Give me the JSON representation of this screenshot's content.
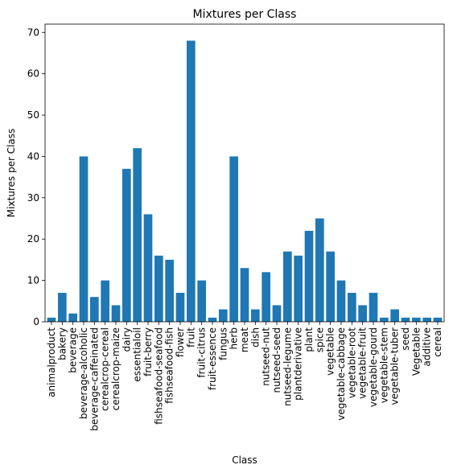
{
  "chart_data": {
    "type": "bar",
    "title": "Mixtures per Class",
    "xlabel": "Class",
    "ylabel": "Mixtures per Class",
    "ylim": [
      0,
      72
    ],
    "yticks": [
      0,
      10,
      20,
      30,
      40,
      50,
      60,
      70
    ],
    "grid": false,
    "legend": "none",
    "bar_color": "#1f77b4",
    "categories": [
      "animalproduct",
      "bakery",
      "beverage",
      "beverage-alcoholic",
      "beverage-caffeinated",
      "cerealcrop-cereal",
      "cerealcrop-maize",
      "dairy",
      "essentialoil",
      "fruit-berry",
      "fishseafood-seafood",
      "fishseafood-fish",
      "flower",
      "fruit",
      "fruit-citrus",
      "fruit-essence",
      "fungus",
      "herb",
      "meat",
      "dish",
      "nutseed-nut",
      "nutseed-seed",
      "nutseed-legume",
      "plantderivative",
      "plant",
      "spice",
      "vegetable",
      "vegetable-cabbage",
      "vegetable-root",
      "vegetable-fruit",
      "vegetable-gourd",
      "vegetable-stem",
      "vegetable-tuber",
      "seed",
      "Vegetable",
      "additive",
      "cereal"
    ],
    "values": [
      1,
      7,
      2,
      40,
      6,
      10,
      4,
      37,
      42,
      26,
      16,
      15,
      7,
      68,
      10,
      1,
      3,
      40,
      13,
      3,
      12,
      4,
      17,
      16,
      22,
      25,
      17,
      10,
      7,
      4,
      7,
      1,
      3,
      1,
      1,
      1,
      1
    ]
  }
}
